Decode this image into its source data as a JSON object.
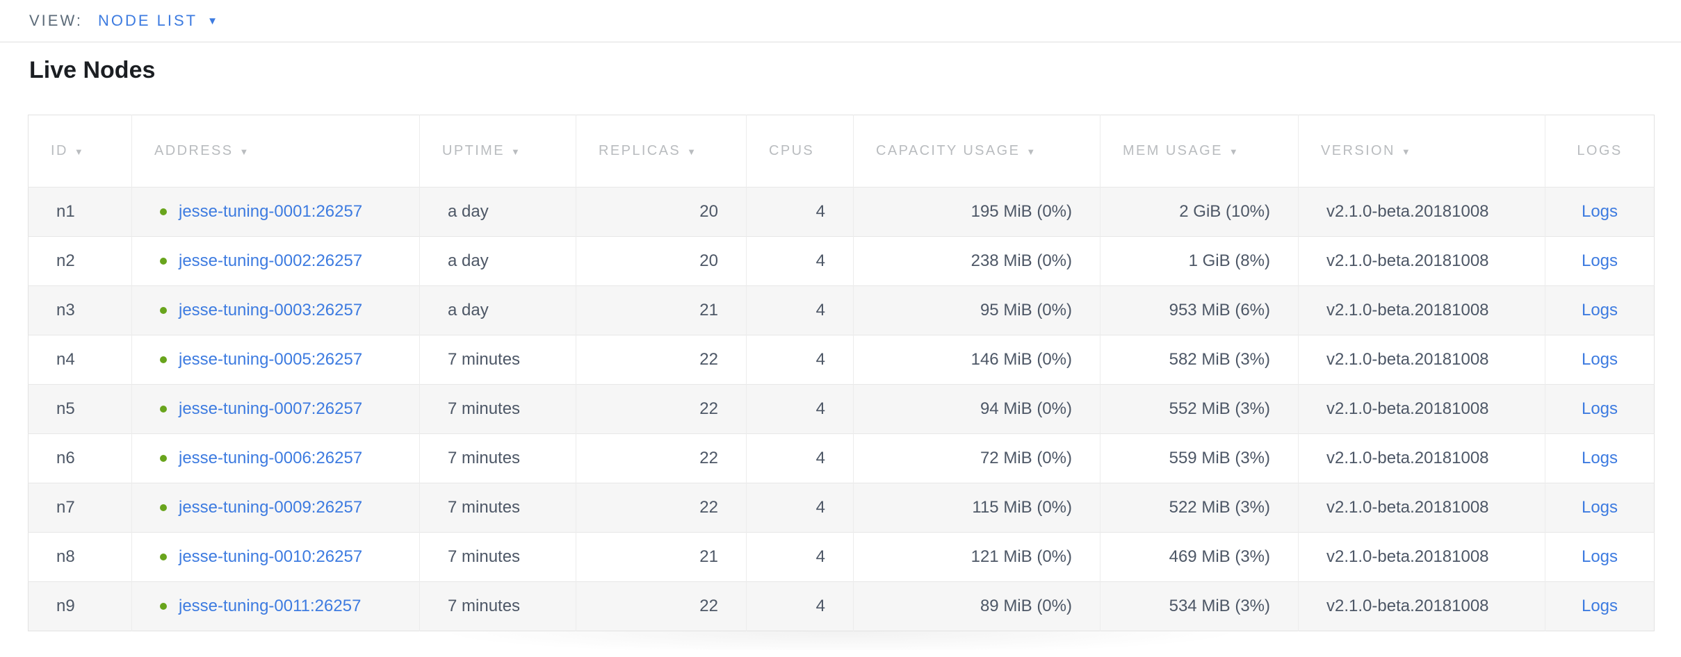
{
  "view_bar": {
    "label": "VIEW:",
    "selected": "NODE LIST"
  },
  "page": {
    "title": "Live Nodes"
  },
  "colors": {
    "link_blue": "#3d7be0",
    "live_green": "#68a41c",
    "header_gray": "#b9bcbf",
    "body_text": "#4d5766",
    "row_stripe": "#f6f6f6"
  },
  "table": {
    "columns": [
      {
        "key": "id",
        "label": "ID",
        "sortable": true,
        "align": "left"
      },
      {
        "key": "address",
        "label": "ADDRESS",
        "sortable": true,
        "align": "left"
      },
      {
        "key": "uptime",
        "label": "UPTIME",
        "sortable": true,
        "align": "left"
      },
      {
        "key": "replicas",
        "label": "REPLICAS",
        "sortable": true,
        "align": "right"
      },
      {
        "key": "cpus",
        "label": "CPUS",
        "sortable": false,
        "align": "right"
      },
      {
        "key": "capacity",
        "label": "CAPACITY USAGE",
        "sortable": true,
        "align": "right"
      },
      {
        "key": "mem",
        "label": "MEM USAGE",
        "sortable": true,
        "align": "right"
      },
      {
        "key": "version",
        "label": "VERSION",
        "sortable": true,
        "align": "left"
      },
      {
        "key": "logs",
        "label": "LOGS",
        "sortable": false,
        "align": "center"
      }
    ],
    "rows": [
      {
        "id": "n1",
        "status": "live",
        "address": "jesse-tuning-0001:26257",
        "uptime": "a day",
        "replicas": "20",
        "cpus": "4",
        "capacity": "195 MiB (0%)",
        "mem": "2 GiB (10%)",
        "version": "v2.1.0-beta.20181008",
        "logs": "Logs"
      },
      {
        "id": "n2",
        "status": "live",
        "address": "jesse-tuning-0002:26257",
        "uptime": "a day",
        "replicas": "20",
        "cpus": "4",
        "capacity": "238 MiB (0%)",
        "mem": "1 GiB (8%)",
        "version": "v2.1.0-beta.20181008",
        "logs": "Logs"
      },
      {
        "id": "n3",
        "status": "live",
        "address": "jesse-tuning-0003:26257",
        "uptime": "a day",
        "replicas": "21",
        "cpus": "4",
        "capacity": "95 MiB (0%)",
        "mem": "953 MiB (6%)",
        "version": "v2.1.0-beta.20181008",
        "logs": "Logs"
      },
      {
        "id": "n4",
        "status": "live",
        "address": "jesse-tuning-0005:26257",
        "uptime": "7 minutes",
        "replicas": "22",
        "cpus": "4",
        "capacity": "146 MiB (0%)",
        "mem": "582 MiB (3%)",
        "version": "v2.1.0-beta.20181008",
        "logs": "Logs"
      },
      {
        "id": "n5",
        "status": "live",
        "address": "jesse-tuning-0007:26257",
        "uptime": "7 minutes",
        "replicas": "22",
        "cpus": "4",
        "capacity": "94 MiB (0%)",
        "mem": "552 MiB (3%)",
        "version": "v2.1.0-beta.20181008",
        "logs": "Logs"
      },
      {
        "id": "n6",
        "status": "live",
        "address": "jesse-tuning-0006:26257",
        "uptime": "7 minutes",
        "replicas": "22",
        "cpus": "4",
        "capacity": "72 MiB (0%)",
        "mem": "559 MiB (3%)",
        "version": "v2.1.0-beta.20181008",
        "logs": "Logs"
      },
      {
        "id": "n7",
        "status": "live",
        "address": "jesse-tuning-0009:26257",
        "uptime": "7 minutes",
        "replicas": "22",
        "cpus": "4",
        "capacity": "115 MiB (0%)",
        "mem": "522 MiB (3%)",
        "version": "v2.1.0-beta.20181008",
        "logs": "Logs"
      },
      {
        "id": "n8",
        "status": "live",
        "address": "jesse-tuning-0010:26257",
        "uptime": "7 minutes",
        "replicas": "21",
        "cpus": "4",
        "capacity": "121 MiB (0%)",
        "mem": "469 MiB (3%)",
        "version": "v2.1.0-beta.20181008",
        "logs": "Logs"
      },
      {
        "id": "n9",
        "status": "live",
        "address": "jesse-tuning-0011:26257",
        "uptime": "7 minutes",
        "replicas": "22",
        "cpus": "4",
        "capacity": "89 MiB (0%)",
        "mem": "534 MiB (3%)",
        "version": "v2.1.0-beta.20181008",
        "logs": "Logs"
      }
    ]
  }
}
